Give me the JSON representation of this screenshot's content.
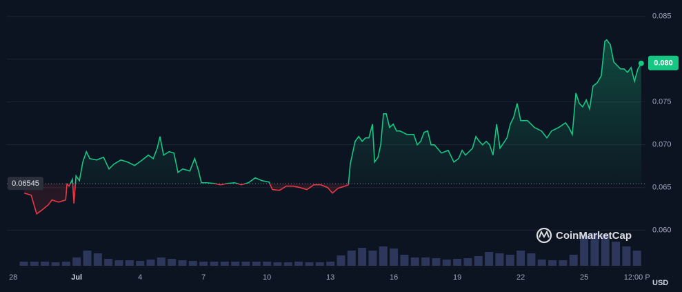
{
  "chart_data": {
    "type": "line",
    "series": [
      {
        "color": "#16c784",
        "color_below": "#ea3943",
        "x": [
          0.52,
          0.85,
          1.01,
          1.11,
          1.34,
          1.66,
          1.83,
          2.15,
          2.48,
          2.54,
          2.64,
          2.8,
          2.87,
          2.97,
          3.13,
          3.29,
          3.46,
          3.62,
          3.95,
          4.27,
          4.53,
          4.76,
          5.09,
          5.41,
          5.74,
          6.06,
          6.39,
          6.62,
          6.81,
          6.94,
          7.11,
          7.37,
          7.6,
          7.79,
          8.02,
          8.35,
          8.58,
          8.74,
          8.9,
          9.16,
          9.49,
          9.81,
          10.14,
          10.47,
          10.79,
          11.12,
          11.44,
          11.77,
          12.1,
          12.26,
          12.59,
          12.91,
          13.24,
          13.56,
          13.89,
          14.22,
          14.54,
          14.87,
          15.1,
          15.36,
          15.68,
          15.85,
          15.94,
          16.17,
          16.34,
          16.5,
          16.66,
          16.82,
          16.99,
          17.09,
          17.25,
          17.38,
          17.51,
          17.64,
          17.8,
          17.97,
          18.13,
          18.29,
          18.62,
          18.94,
          19.11,
          19.27,
          19.43,
          19.6,
          19.76,
          19.92,
          20.25,
          20.57,
          20.84,
          21.06,
          21.23,
          21.39,
          21.72,
          21.88,
          22.04,
          22.2,
          22.37,
          22.53,
          22.69,
          22.86,
          23.02,
          23.35,
          23.51,
          23.67,
          23.83,
          24.0,
          24.32,
          24.49,
          24.65,
          24.98,
          25.24,
          25.46,
          25.79,
          26.12,
          26.28,
          26.44,
          26.61,
          26.77,
          26.93,
          27.1,
          27.26,
          27.42,
          27.62,
          27.81,
          27.98,
          28.07,
          28.24,
          28.4,
          28.72,
          28.89,
          29.05,
          29.22,
          29.38,
          29.54,
          29.7
        ],
        "values": [
          0.06435,
          0.06411,
          0.06274,
          0.06193,
          0.06234,
          0.06298,
          0.06355,
          0.0633,
          0.06355,
          0.0654,
          0.06516,
          0.06596,
          0.06314,
          0.06637,
          0.0658,
          0.06798,
          0.06919,
          0.06838,
          0.06822,
          0.06854,
          0.06717,
          0.06774,
          0.06822,
          0.06798,
          0.06758,
          0.06814,
          0.06879,
          0.06838,
          0.06959,
          0.07096,
          0.06879,
          0.06919,
          0.06903,
          0.06677,
          0.06717,
          0.06693,
          0.06838,
          0.06717,
          0.06556,
          0.06556,
          0.06548,
          0.06532,
          0.06548,
          0.06556,
          0.06532,
          0.06556,
          0.06613,
          0.0658,
          0.06564,
          0.06476,
          0.06467,
          0.06516,
          0.06516,
          0.065,
          0.06476,
          0.06532,
          0.06532,
          0.065,
          0.06435,
          0.06492,
          0.06516,
          0.06532,
          0.06774,
          0.0704,
          0.07096,
          0.0704,
          0.0708,
          0.0708,
          0.07241,
          0.06798,
          0.06854,
          0.06999,
          0.07362,
          0.07362,
          0.07201,
          0.07241,
          0.07161,
          0.07161,
          0.0712,
          0.0712,
          0.06999,
          0.0704,
          0.07145,
          0.07161,
          0.06999,
          0.06999,
          0.06903,
          0.06935,
          0.06798,
          0.06838,
          0.06935,
          0.06879,
          0.06959,
          0.07096,
          0.0704,
          0.06999,
          0.0704,
          0.06999,
          0.06879,
          0.07241,
          0.06959,
          0.0708,
          0.07241,
          0.07322,
          0.07483,
          0.07282,
          0.07282,
          0.07241,
          0.07201,
          0.07161,
          0.0708,
          0.07161,
          0.07201,
          0.07257,
          0.07201,
          0.0712,
          0.07604,
          0.07483,
          0.07443,
          0.07523,
          0.07419,
          0.07685,
          0.07725,
          0.07805,
          0.08208,
          0.08225,
          0.08168,
          0.07967,
          0.07886,
          0.07886,
          0.07846,
          0.07902,
          0.07741,
          0.07886,
          0.07951
        ]
      },
      {
        "type": "volume",
        "color": "#34406a",
        "axis": "y2",
        "x": [
          0.5,
          1,
          1.5,
          2,
          2.5,
          3,
          3.5,
          4,
          4.5,
          5,
          5.5,
          6,
          6.5,
          7,
          7.5,
          8,
          8.5,
          9,
          9.5,
          10,
          10.5,
          11,
          11.5,
          12,
          12.5,
          13,
          13.5,
          14,
          14.5,
          15,
          15.5,
          16,
          16.5,
          17,
          17.5,
          18,
          18.5,
          19,
          19.5,
          20,
          20.5,
          21,
          21.5,
          22,
          22.5,
          23,
          23.5,
          24,
          24.5,
          25,
          25.5,
          26,
          26.5,
          27,
          27.5,
          28,
          28.5,
          29,
          29.5
        ],
        "values": [
          6,
          6,
          6,
          5,
          6,
          12,
          22,
          18,
          10,
          8,
          8,
          7,
          9,
          12,
          10,
          8,
          7,
          6,
          6,
          6,
          6,
          6,
          6,
          6,
          5,
          5,
          6,
          5,
          5,
          6,
          15,
          22,
          26,
          22,
          28,
          25,
          16,
          12,
          12,
          11,
          9,
          10,
          11,
          14,
          20,
          18,
          16,
          22,
          18,
          9,
          8,
          8,
          16,
          45,
          48,
          46,
          35,
          28,
          22
        ]
      }
    ],
    "baseline": 0.06545,
    "last_price": {
      "value": 0.07951,
      "label": "0.080"
    },
    "xlim": [
      -0.3,
      29.9
    ],
    "ylim": [
      0.0553,
      0.0861
    ],
    "y2lim": [
      0,
      50
    ],
    "xticks": [
      {
        "value": 0,
        "label": "28"
      },
      {
        "value": 3,
        "label": "Jul"
      },
      {
        "value": 6,
        "label": "4"
      },
      {
        "value": 9,
        "label": "7"
      },
      {
        "value": 12,
        "label": "10"
      },
      {
        "value": 15,
        "label": "13"
      },
      {
        "value": 18,
        "label": "16"
      },
      {
        "value": 21,
        "label": "19"
      },
      {
        "value": 24,
        "label": "22"
      },
      {
        "value": 27,
        "label": "25"
      },
      {
        "value": 29.5,
        "label": "12:00 P"
      }
    ],
    "yticks": [
      {
        "value": 0.06,
        "label": "0.060"
      },
      0.065,
      {
        "value": 0.07,
        "label": "0.070"
      },
      0.075,
      {
        "value": 0.08,
        "label": "0.080"
      },
      0.085
    ],
    "grid": true,
    "currency": "USD",
    "watermark": "CoinMarketCap"
  }
}
